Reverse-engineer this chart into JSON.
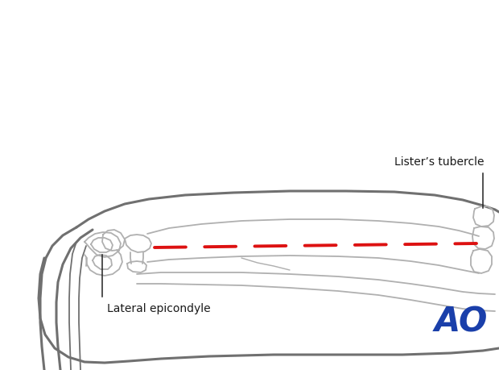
{
  "bg_color": "#ffffff",
  "line_color": "#b0b0b0",
  "line_color_dark": "#707070",
  "dashed_line_color": "#dd1111",
  "text_color": "#1a1a1a",
  "ao_color": "#1a3faa",
  "label_lateral": "Lateral epicondyle",
  "label_lister": "Lister’s tubercle",
  "figsize": [
    6.2,
    4.59
  ],
  "dpi": 100
}
